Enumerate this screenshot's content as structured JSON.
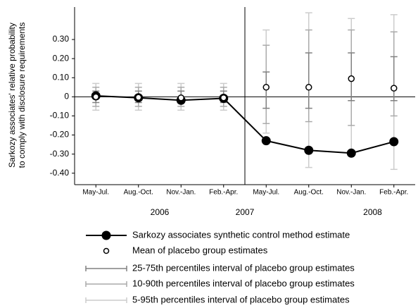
{
  "chart_data": {
    "type": "line",
    "y_label": [
      "Sarkozy associates' relative probability",
      "to comply with disclosure requirements"
    ],
    "categories": [
      "May-Jul.",
      "Aug.-Oct.",
      "Nov.-Jan.",
      "Feb.-Apr.",
      "May-Jul.",
      "Aug.-Oct.",
      "Nov.-Jan.",
      "Feb.-Apr."
    ],
    "year_labels": [
      "2006",
      "2007",
      "2008"
    ],
    "ylim": [
      -0.46,
      0.47
    ],
    "yticks": [
      {
        "value": 0.3,
        "label": "0.30"
      },
      {
        "value": 0.2,
        "label": "0.20"
      },
      {
        "value": 0.1,
        "label": "0.10"
      },
      0,
      {
        "value": -0.1,
        "label": "-0.10"
      },
      {
        "value": -0.2,
        "label": "-0.20"
      },
      {
        "value": -0.3,
        "label": "-0.30"
      },
      {
        "value": -0.4,
        "label": "-0.40"
      }
    ],
    "series": [
      {
        "name": "Sarkozy associates synthetic control method estimate",
        "color": "#000000",
        "values": [
          0.005,
          -0.005,
          -0.018,
          -0.008,
          -0.23,
          -0.28,
          -0.295,
          -0.235
        ]
      },
      {
        "name": "Mean of placebo group estimates",
        "color": "#ffffff",
        "values": [
          0.0,
          -0.003,
          -0.005,
          -0.005,
          0.05,
          0.05,
          0.095,
          0.045
        ]
      }
    ],
    "intervals": [
      {
        "name": "25-75th percentiles interval of placebo group estimates",
        "color": "#808080",
        "low": [
          -0.03,
          -0.03,
          -0.03,
          -0.03,
          -0.06,
          -0.06,
          -0.02,
          -0.02
        ],
        "high": [
          0.03,
          0.03,
          0.03,
          0.03,
          0.13,
          0.23,
          0.23,
          0.21
        ]
      },
      {
        "name": "10-90th percentiles interval of placebo group estimates",
        "color": "#aaaaaa",
        "low": [
          -0.05,
          -0.05,
          -0.05,
          -0.05,
          -0.14,
          -0.13,
          -0.15,
          -0.1
        ],
        "high": [
          0.05,
          0.05,
          0.05,
          0.05,
          0.27,
          0.35,
          0.35,
          0.34
        ]
      },
      {
        "name": "5-95th percentiles interval of placebo group estimates",
        "color": "#cccccc",
        "low": [
          -0.07,
          -0.07,
          -0.07,
          -0.07,
          -0.19,
          -0.37,
          -0.29,
          -0.38
        ],
        "high": [
          0.07,
          0.07,
          0.07,
          0.07,
          0.35,
          0.44,
          0.41,
          0.43
        ]
      }
    ]
  }
}
